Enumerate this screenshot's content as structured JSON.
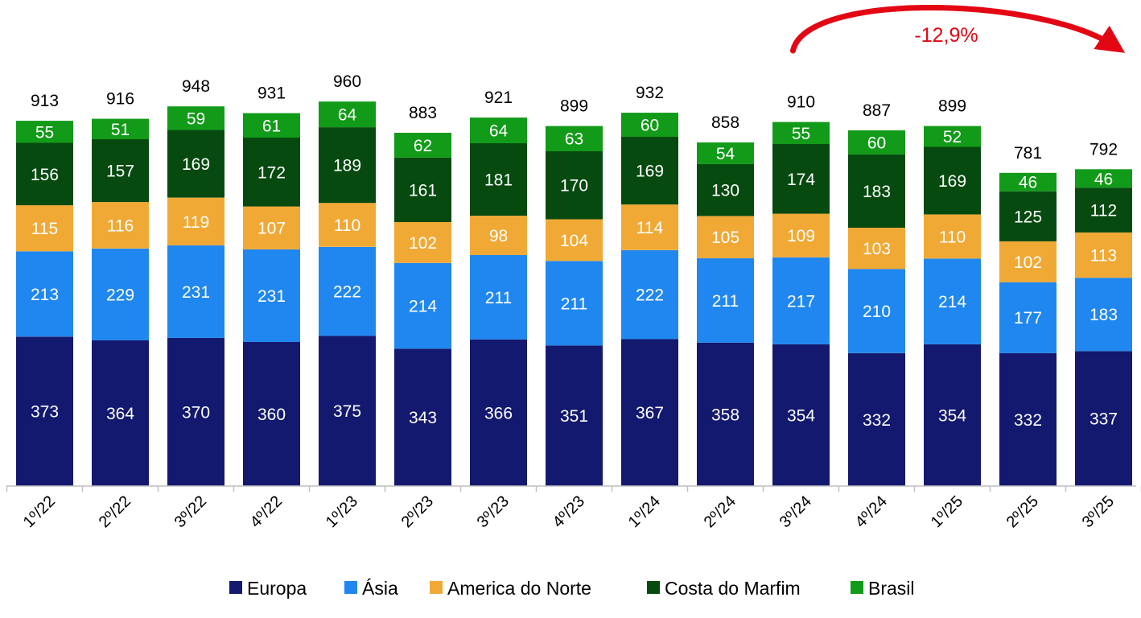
{
  "chart_data": {
    "type": "bar",
    "stacked": true,
    "categories": [
      "1º/22",
      "2º/22",
      "3º/22",
      "4º/22",
      "1º/23",
      "2º/23",
      "3º/23",
      "4º/23",
      "1º/24",
      "2º/24",
      "3º/24",
      "4º/24",
      "1º/25",
      "2º/25",
      "3º/25"
    ],
    "series": [
      {
        "name": "Europa",
        "color": "#13196F",
        "label_color": "#FFFFFF",
        "values": [
          373,
          364,
          370,
          360,
          375,
          343,
          366,
          351,
          367,
          358,
          354,
          332,
          354,
          332,
          337
        ]
      },
      {
        "name": "Ásia",
        "color": "#1F87EF",
        "label_color": "#FFFFFF",
        "values": [
          213,
          229,
          231,
          231,
          222,
          214,
          211,
          211,
          222,
          211,
          217,
          210,
          214,
          177,
          183
        ]
      },
      {
        "name": "America do Norte",
        "color": "#F1A935",
        "label_color": "#FFFFFF",
        "values": [
          115,
          116,
          119,
          107,
          110,
          102,
          98,
          104,
          114,
          105,
          109,
          103,
          110,
          102,
          113
        ]
      },
      {
        "name": "Costa do Marfim",
        "color": "#074A10",
        "label_color": "#FFFFFF",
        "values": [
          156,
          157,
          169,
          172,
          189,
          161,
          181,
          170,
          169,
          130,
          174,
          183,
          169,
          125,
          112
        ]
      },
      {
        "name": "Brasil",
        "color": "#129A19",
        "label_color": "#FFFFFF",
        "values": [
          55,
          51,
          59,
          61,
          64,
          62,
          64,
          63,
          60,
          54,
          55,
          60,
          52,
          46,
          46
        ]
      }
    ],
    "totals": [
      913,
      916,
      948,
      931,
      960,
      883,
      921,
      899,
      932,
      858,
      910,
      887,
      899,
      781,
      792
    ],
    "ylim": [
      0,
      1000
    ],
    "grid": false,
    "legend_position": "bottom",
    "annotation": {
      "text": "-12,9%",
      "color": "#E30613",
      "from_category": "3º/24",
      "to_category": "3º/25"
    },
    "title": "",
    "xlabel": "",
    "ylabel": ""
  }
}
